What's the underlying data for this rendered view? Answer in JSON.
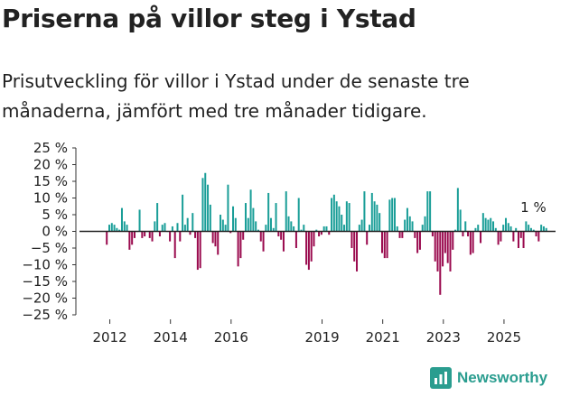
{
  "header": {
    "title": "Priserna på villor steg i Ystad",
    "subtitle": "Prisutveckling för villor i Ystad under de senaste tre månaderna, jämfört med tre månader tidigare."
  },
  "brand": {
    "name": "Newsworthy",
    "icon": "bar-chart-logo-icon"
  },
  "colors": {
    "positive": "#1a9e98",
    "negative": "#9a0a4e",
    "axis": "#333333",
    "brand": "#2a9d8f"
  },
  "chart_data": {
    "type": "bar",
    "title": "Priserna på villor steg i Ystad",
    "xlabel": "",
    "ylabel": "",
    "ylim": [
      -25,
      25
    ],
    "yticks": [
      25,
      20,
      15,
      10,
      5,
      0,
      -5,
      -10,
      -15,
      -20,
      -25
    ],
    "ytick_labels": [
      "25 %",
      "20 %",
      "15 %",
      "10 %",
      "5 %",
      "0 %",
      "−5 %",
      "−10 %",
      "−15 %",
      "−20 %",
      "−25 %"
    ],
    "xlim": [
      2011.0,
      2026.7
    ],
    "xticks": [
      2012,
      2014,
      2016,
      2019,
      2021,
      2023,
      2025
    ],
    "xtick_labels": [
      "2012",
      "2014",
      "2016",
      "2019",
      "2021",
      "2023",
      "2025"
    ],
    "annotation": {
      "text": "1 %",
      "x": 2025.9,
      "y": 1
    },
    "start_year": 2011.9,
    "step_years": 0.0833,
    "values": [
      -4,
      2,
      2.5,
      2,
      1,
      0.5,
      7,
      3,
      2,
      -5.5,
      -4,
      -2,
      0,
      6.5,
      -2,
      -1.5,
      0,
      -2,
      -3,
      3,
      8.5,
      -1.5,
      2,
      2.5,
      0,
      -3,
      1.5,
      -8,
      2.5,
      -3,
      11,
      2,
      4,
      -1,
      5.5,
      -2,
      -11.5,
      -11,
      16,
      17.5,
      14,
      8,
      -3.5,
      -4.5,
      -7,
      5,
      3.5,
      2,
      14,
      -0.5,
      7.5,
      4,
      -10.5,
      -8,
      -2.5,
      8.5,
      4,
      12.5,
      7,
      3,
      0.5,
      -3,
      -6,
      2,
      11.5,
      4,
      1,
      8.5,
      -1.5,
      -2.5,
      -6,
      12,
      4.5,
      3,
      1.5,
      -5,
      10,
      0.5,
      2,
      -10,
      -11.5,
      -9,
      -4.5,
      0.5,
      -1.5,
      -1,
      1.5,
      1.5,
      -1,
      10,
      11,
      9,
      7.5,
      5,
      2,
      9,
      8.5,
      -5,
      -9,
      -12,
      2,
      3.5,
      12,
      -4,
      2,
      11.5,
      9,
      8,
      5.5,
      -6.5,
      -8,
      -8,
      9.5,
      10,
      10,
      1.5,
      -2,
      -2,
      3.5,
      7,
      4.5,
      3,
      -2,
      -6.5,
      -5.5,
      2,
      4.5,
      12,
      12,
      -1.5,
      -9,
      -12,
      -19,
      -10.5,
      -6.5,
      -9.5,
      -12,
      -5.5,
      0.5,
      13,
      6.5,
      -1.5,
      3,
      -1.5,
      -7,
      -6.5,
      1,
      2,
      -3.5,
      5.5,
      4,
      3.5,
      4,
      3,
      1,
      -4,
      -3,
      2,
      4,
      2.5,
      1.5,
      -3,
      1,
      -5,
      -2,
      -5,
      3,
      2,
      1,
      0.5,
      -1.5,
      -3,
      2,
      1.5,
      1
    ]
  }
}
